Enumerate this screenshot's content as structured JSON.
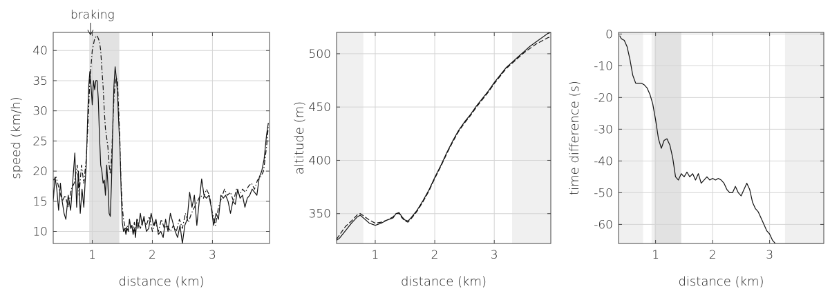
{
  "chart_data": [
    {
      "type": "line",
      "xlabel": "distance (km)",
      "ylabel": "speed (km/h)",
      "xlim": [
        0.35,
        3.95
      ],
      "ylim": [
        8,
        43
      ],
      "xticks": [
        1,
        2,
        3
      ],
      "yticks": [
        10,
        15,
        20,
        25,
        30,
        35,
        40
      ],
      "grid": true,
      "shaded_regions": [
        {
          "x": [
            0.95,
            1.45
          ],
          "shade": "dark"
        }
      ],
      "annotation": {
        "text": "braking",
        "x": 0.97,
        "y": 42.5
      },
      "series": [
        {
          "style": "solid",
          "x": [
            0.35,
            0.38,
            0.41,
            0.44,
            0.47,
            0.5,
            0.53,
            0.56,
            0.6,
            0.64,
            0.68,
            0.71,
            0.74,
            0.77,
            0.8,
            0.83,
            0.86,
            0.88,
            0.9,
            0.92,
            0.94,
            0.96,
            0.98,
            1.0,
            1.02,
            1.04,
            1.06,
            1.08,
            1.1,
            1.12,
            1.14,
            1.16,
            1.18,
            1.2,
            1.22,
            1.24,
            1.26,
            1.28,
            1.3,
            1.32,
            1.34,
            1.36,
            1.38,
            1.4,
            1.42,
            1.44,
            1.46,
            1.48,
            1.5,
            1.52,
            1.54,
            1.56,
            1.58,
            1.6,
            1.62,
            1.64,
            1.66,
            1.68,
            1.7,
            1.72,
            1.74,
            1.76,
            1.78,
            1.8,
            1.83,
            1.86,
            1.9,
            1.94,
            1.98,
            2.02,
            2.06,
            2.1,
            2.14,
            2.18,
            2.22,
            2.26,
            2.3,
            2.34,
            2.38,
            2.42,
            2.46,
            2.5,
            2.54,
            2.58,
            2.62,
            2.66,
            2.7,
            2.74,
            2.78,
            2.82,
            2.86,
            2.9,
            2.94,
            2.98,
            3.02,
            3.06,
            3.1,
            3.14,
            3.18,
            3.22,
            3.26,
            3.3,
            3.34,
            3.38,
            3.42,
            3.46,
            3.5,
            3.54,
            3.58,
            3.62,
            3.66,
            3.7,
            3.74,
            3.78,
            3.82,
            3.86,
            3.9,
            3.93
          ],
          "y": [
            15,
            19,
            17,
            13.5,
            18,
            15,
            13,
            12,
            16,
            13.5,
            19,
            23,
            14,
            20,
            13,
            17,
            14,
            18,
            21,
            28,
            34,
            36.5,
            34,
            31,
            35,
            33.5,
            35,
            35,
            32,
            26,
            21,
            20,
            18,
            18.5,
            16,
            21,
            18,
            13,
            12.5,
            18,
            27,
            34,
            37.3,
            35.5,
            33,
            28,
            24,
            17,
            11.5,
            10,
            10.5,
            9.5,
            10.5,
            10,
            12,
            10.5,
            11,
            9.5,
            10.5,
            9,
            12,
            10.5,
            11.5,
            13,
            11,
            12.5,
            10,
            10.5,
            13,
            11,
            12,
            9.5,
            10,
            9,
            12,
            10,
            13,
            11.5,
            10,
            9,
            11,
            8,
            11,
            12,
            16.5,
            14,
            16,
            11,
            15,
            18.7,
            16,
            15.5,
            16,
            14,
            11,
            13,
            12,
            16,
            15.5,
            16,
            15,
            13,
            15,
            14.5,
            17,
            15.5,
            16,
            14,
            15.5,
            16,
            17,
            16.5,
            16,
            19,
            20,
            22,
            26,
            28
          ]
        },
        {
          "style": "dash-dot",
          "x": [
            0.35,
            0.4,
            0.45,
            0.5,
            0.55,
            0.6,
            0.65,
            0.7,
            0.75,
            0.78,
            0.82,
            0.86,
            0.9,
            0.93,
            0.96,
            1.0,
            1.04,
            1.08,
            1.1,
            1.12,
            1.14,
            1.16,
            1.18,
            1.2,
            1.22,
            1.24,
            1.26,
            1.28,
            1.3,
            1.32,
            1.34,
            1.36,
            1.38,
            1.4,
            1.42,
            1.44,
            1.46,
            1.48,
            1.5,
            1.52,
            1.54,
            1.56,
            1.58,
            1.6,
            1.62,
            1.64,
            1.66,
            1.68,
            1.7,
            1.72,
            1.75,
            1.8,
            1.85,
            1.9,
            1.95,
            2.0,
            2.05,
            2.1,
            2.15,
            2.2,
            2.25,
            2.3,
            2.35,
            2.4,
            2.45,
            2.5,
            2.55,
            2.6,
            2.65,
            2.7,
            2.75,
            2.8,
            2.85,
            2.9,
            2.95,
            3.0,
            3.05,
            3.1,
            3.15,
            3.2,
            3.25,
            3.3,
            3.35,
            3.4,
            3.45,
            3.5,
            3.55,
            3.6,
            3.65,
            3.7,
            3.75,
            3.8,
            3.85,
            3.9,
            3.93
          ],
          "y": [
            18.5,
            19,
            17,
            15,
            16,
            14,
            17,
            18,
            21,
            16,
            21,
            18,
            22,
            28,
            35,
            40,
            42,
            42.5,
            42,
            41.5,
            40,
            37,
            34,
            30,
            27,
            25.5,
            24,
            21,
            19.5,
            22,
            27,
            32,
            34.5,
            35.5,
            35,
            30,
            25,
            18,
            14,
            12,
            11,
            10,
            11,
            10,
            12,
            10.5,
            11,
            10,
            11.5,
            10,
            12,
            10.5,
            12,
            11,
            12.5,
            10,
            11.5,
            10,
            12,
            10.5,
            11,
            10,
            11,
            10,
            12,
            10.5,
            13,
            11.5,
            13,
            14,
            15,
            16,
            15.5,
            17,
            16,
            13,
            11,
            14,
            15.5,
            17,
            16,
            16.5,
            15,
            17,
            16,
            17,
            16.5,
            17.5,
            18,
            17,
            18.5,
            19,
            20,
            24,
            27.5
          ]
        }
      ]
    },
    {
      "type": "line",
      "xlabel": "distance (km)",
      "ylabel": "altitude (m)",
      "xlim": [
        0.35,
        3.95
      ],
      "ylim": [
        322,
        520
      ],
      "xticks": [
        1,
        2,
        3
      ],
      "yticks": [
        350,
        400,
        450,
        500
      ],
      "grid": true,
      "shaded_regions": [
        {
          "x": [
            0.35,
            0.8
          ],
          "shade": "light"
        },
        {
          "x": [
            3.3,
            3.95
          ],
          "shade": "light"
        }
      ],
      "series": [
        {
          "style": "solid",
          "x": [
            0.35,
            0.4,
            0.5,
            0.6,
            0.7,
            0.75,
            0.8,
            0.9,
            1.0,
            1.1,
            1.2,
            1.3,
            1.35,
            1.4,
            1.45,
            1.5,
            1.55,
            1.6,
            1.7,
            1.8,
            1.9,
            2.0,
            2.1,
            2.2,
            2.3,
            2.4,
            2.5,
            2.6,
            2.7,
            2.8,
            2.9,
            3.0,
            3.1,
            3.2,
            3.3,
            3.4,
            3.5,
            3.6,
            3.7,
            3.8,
            3.9,
            3.95
          ],
          "y": [
            325,
            327,
            334,
            341,
            347,
            348.5,
            346,
            341,
            339,
            341,
            344,
            346,
            350,
            351,
            347,
            344,
            343,
            346,
            353,
            362,
            372,
            384,
            395,
            407,
            418,
            428,
            436,
            443,
            451,
            458,
            465,
            473,
            480,
            487,
            492,
            497,
            502,
            507,
            511,
            515,
            519,
            520
          ]
        },
        {
          "style": "dashed",
          "x": [
            0.35,
            0.4,
            0.5,
            0.6,
            0.7,
            0.75,
            0.8,
            0.9,
            1.0,
            1.1,
            1.2,
            1.3,
            1.35,
            1.4,
            1.45,
            1.5,
            1.55,
            1.6,
            1.7,
            1.8,
            1.9,
            2.0,
            2.1,
            2.2,
            2.3,
            2.4,
            2.5,
            2.6,
            2.7,
            2.8,
            2.9,
            3.0,
            3.1,
            3.2,
            3.3,
            3.4,
            3.5,
            3.6,
            3.7,
            3.8,
            3.9,
            3.95
          ],
          "y": [
            326,
            330,
            338,
            343,
            349,
            350,
            348,
            344,
            341,
            342,
            344,
            347,
            350,
            350,
            346,
            343,
            342,
            345,
            352,
            361,
            371,
            383,
            394,
            406,
            417,
            427,
            435,
            442,
            450,
            457,
            464,
            472,
            479,
            486,
            491,
            496,
            501,
            505,
            509,
            512,
            515,
            516
          ]
        }
      ]
    },
    {
      "type": "line",
      "xlabel": "distance (km)",
      "ylabel": "time difference (s)",
      "xlim": [
        0.35,
        3.95
      ],
      "ylim": [
        -66,
        0.5
      ],
      "xticks": [
        1,
        2,
        3
      ],
      "yticks": [
        0,
        -10,
        -20,
        -30,
        -40,
        -50,
        -60
      ],
      "grid": true,
      "shaded_regions": [
        {
          "x": [
            0.35,
            0.78
          ],
          "shade": "light"
        },
        {
          "x": [
            0.93,
            0.98
          ],
          "shade": "light"
        },
        {
          "x": [
            0.98,
            1.45
          ],
          "shade": "dark"
        },
        {
          "x": [
            3.27,
            3.95
          ],
          "shade": "light"
        }
      ],
      "series": [
        {
          "style": "solid",
          "x": [
            0.37,
            0.4,
            0.45,
            0.5,
            0.55,
            0.6,
            0.65,
            0.7,
            0.75,
            0.8,
            0.85,
            0.9,
            0.95,
            1.0,
            1.05,
            1.1,
            1.15,
            1.2,
            1.25,
            1.3,
            1.35,
            1.4,
            1.45,
            1.5,
            1.55,
            1.6,
            1.65,
            1.7,
            1.75,
            1.8,
            1.85,
            1.9,
            1.95,
            2.0,
            2.05,
            2.1,
            2.15,
            2.2,
            2.25,
            2.3,
            2.35,
            2.4,
            2.45,
            2.5,
            2.55,
            2.6,
            2.65,
            2.7,
            2.75,
            2.8,
            2.85,
            2.9,
            2.95,
            3.0,
            3.05,
            3.1,
            3.15,
            3.2,
            3.25,
            3.3,
            3.35,
            3.4,
            3.45,
            3.5,
            3.55,
            3.6,
            3.65,
            3.7,
            3.75,
            3.8,
            3.85,
            3.9,
            3.95
          ],
          "y": [
            -0.5,
            -1.5,
            -2,
            -4,
            -8,
            -13,
            -15.5,
            -15.5,
            -15.5,
            -16,
            -17,
            -19,
            -22,
            -27,
            -33,
            -36,
            -33.5,
            -33,
            -35,
            -39,
            -45,
            -46,
            -44,
            -45,
            -43.5,
            -45,
            -44,
            -46,
            -44,
            -47,
            -46,
            -45,
            -46,
            -45.5,
            -46,
            -45.5,
            -46,
            -47,
            -49,
            -50,
            -50,
            -48,
            -50,
            -51,
            -49,
            -47,
            -49,
            -53,
            -55,
            -56,
            -58,
            -60,
            -62,
            -63,
            -65,
            -66,
            -66,
            -66,
            -66,
            -66,
            -66,
            -66,
            -66,
            -66,
            -66,
            -66,
            -66,
            -66,
            -66,
            -66,
            -66,
            -66,
            -66
          ]
        }
      ]
    }
  ]
}
